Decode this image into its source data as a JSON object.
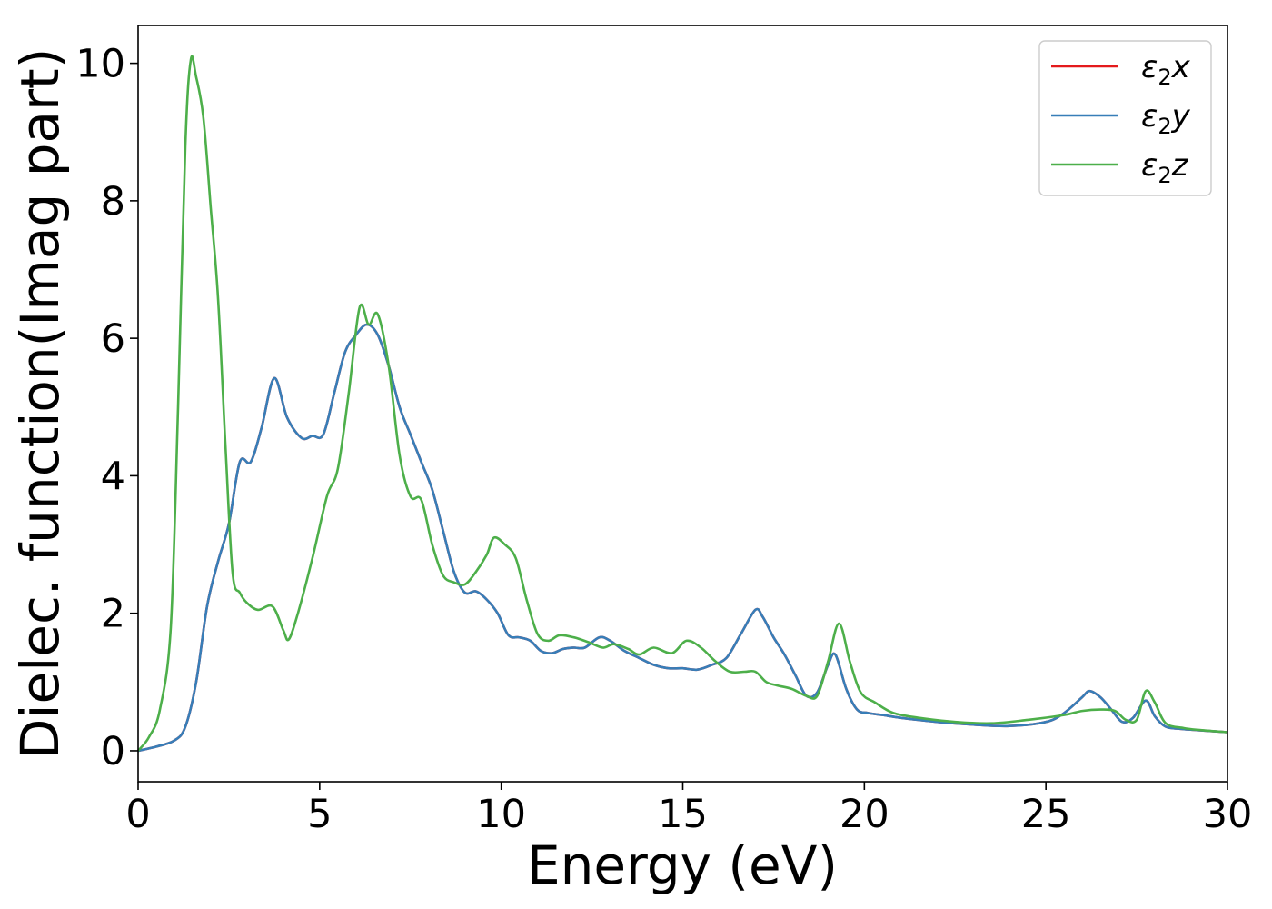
{
  "chart_data": {
    "type": "line",
    "title": "",
    "xlabel": "Energy (eV)",
    "ylabel": "Dielec. function(Imag part)",
    "xlim": [
      0,
      30
    ],
    "ylim": [
      -0.45,
      10.55
    ],
    "xticks": [
      0,
      5,
      10,
      15,
      20,
      25,
      30
    ],
    "yticks": [
      0,
      2,
      4,
      6,
      8,
      10
    ],
    "xtick_labels": [
      "0",
      "5",
      "10",
      "15",
      "20",
      "25",
      "30"
    ],
    "ytick_labels": [
      "0",
      "2",
      "4",
      "6",
      "8",
      "10"
    ],
    "grid": false,
    "legend_position": "top-right",
    "series": [
      {
        "name": "ε₂x",
        "name_parts": {
          "sym": "ε",
          "sub": "2",
          "axis": "x"
        },
        "color": "#e41a1c",
        "same_as": "ε₂y"
      },
      {
        "name": "ε₂y",
        "name_parts": {
          "sym": "ε",
          "sub": "2",
          "axis": "y"
        },
        "color": "#377eb8",
        "x": [
          0,
          0.5,
          1.0,
          1.3,
          1.6,
          1.9,
          2.2,
          2.5,
          2.8,
          3.1,
          3.4,
          3.75,
          4.1,
          4.5,
          4.8,
          5.1,
          5.4,
          5.7,
          6.0,
          6.3,
          6.6,
          6.9,
          7.2,
          7.5,
          7.8,
          8.1,
          8.4,
          8.7,
          9.0,
          9.3,
          9.6,
          9.9,
          10.2,
          10.5,
          10.8,
          11.1,
          11.4,
          11.7,
          12.0,
          12.3,
          12.7,
          13.0,
          13.4,
          13.8,
          14.2,
          14.6,
          15.0,
          15.4,
          15.8,
          16.2,
          16.6,
          17.0,
          17.2,
          17.5,
          17.8,
          18.1,
          18.4,
          18.7,
          19.0,
          19.2,
          19.5,
          19.8,
          20.1,
          20.5,
          21.0,
          22.0,
          23.0,
          24.0,
          25.0,
          25.5,
          26.0,
          26.2,
          26.5,
          26.8,
          27.1,
          27.4,
          27.75,
          28.0,
          28.3,
          28.7,
          29.2,
          30.0
        ],
        "y": [
          0.0,
          0.06,
          0.15,
          0.35,
          1.0,
          2.1,
          2.75,
          3.3,
          4.2,
          4.2,
          4.7,
          5.42,
          4.85,
          4.55,
          4.58,
          4.6,
          5.2,
          5.8,
          6.05,
          6.2,
          6.05,
          5.6,
          5.0,
          4.6,
          4.2,
          3.8,
          3.2,
          2.6,
          2.3,
          2.32,
          2.2,
          2.0,
          1.68,
          1.65,
          1.6,
          1.45,
          1.42,
          1.48,
          1.5,
          1.5,
          1.65,
          1.6,
          1.45,
          1.35,
          1.25,
          1.2,
          1.2,
          1.18,
          1.25,
          1.35,
          1.7,
          2.05,
          1.95,
          1.65,
          1.4,
          1.1,
          0.8,
          0.85,
          1.25,
          1.4,
          0.9,
          0.6,
          0.55,
          0.52,
          0.48,
          0.42,
          0.38,
          0.36,
          0.42,
          0.55,
          0.78,
          0.87,
          0.78,
          0.6,
          0.42,
          0.48,
          0.73,
          0.5,
          0.35,
          0.32,
          0.3,
          0.27
        ]
      },
      {
        "name": "ε₂z",
        "name_parts": {
          "sym": "ε",
          "sub": "2",
          "axis": "z"
        },
        "color": "#4daf4a",
        "x": [
          0,
          0.3,
          0.6,
          0.9,
          1.1,
          1.3,
          1.45,
          1.6,
          1.8,
          2.0,
          2.2,
          2.4,
          2.6,
          2.8,
          3.0,
          3.3,
          3.7,
          4.0,
          4.15,
          4.4,
          4.8,
          5.2,
          5.5,
          5.8,
          6.1,
          6.35,
          6.6,
          6.9,
          7.2,
          7.5,
          7.8,
          8.1,
          8.4,
          8.7,
          9.0,
          9.3,
          9.6,
          9.8,
          10.1,
          10.4,
          10.7,
          11.0,
          11.3,
          11.6,
          12.0,
          12.4,
          12.8,
          13.1,
          13.5,
          13.8,
          14.2,
          14.7,
          15.1,
          15.5,
          15.9,
          16.3,
          16.7,
          17.0,
          17.3,
          17.6,
          18.0,
          18.4,
          18.7,
          19.0,
          19.3,
          19.6,
          19.9,
          20.3,
          20.8,
          21.5,
          22.5,
          23.5,
          24.5,
          25.5,
          26.0,
          26.5,
          26.9,
          27.2,
          27.5,
          27.75,
          28.0,
          28.3,
          28.8,
          29.3,
          30.0
        ],
        "y": [
          0.0,
          0.2,
          0.6,
          1.8,
          5.0,
          8.8,
          10.05,
          9.8,
          9.2,
          7.9,
          6.6,
          4.5,
          2.6,
          2.3,
          2.15,
          2.05,
          2.1,
          1.75,
          1.62,
          2.0,
          2.8,
          3.7,
          4.1,
          5.2,
          6.45,
          6.2,
          6.35,
          5.6,
          4.3,
          3.7,
          3.65,
          3.0,
          2.55,
          2.45,
          2.42,
          2.6,
          2.85,
          3.1,
          3.0,
          2.8,
          2.2,
          1.7,
          1.6,
          1.68,
          1.65,
          1.58,
          1.5,
          1.55,
          1.48,
          1.4,
          1.5,
          1.42,
          1.6,
          1.5,
          1.3,
          1.15,
          1.15,
          1.15,
          1.0,
          0.95,
          0.9,
          0.8,
          0.8,
          1.3,
          1.85,
          1.3,
          0.85,
          0.7,
          0.55,
          0.48,
          0.42,
          0.4,
          0.45,
          0.52,
          0.58,
          0.6,
          0.58,
          0.45,
          0.45,
          0.87,
          0.7,
          0.4,
          0.33,
          0.3,
          0.27
        ]
      }
    ]
  }
}
